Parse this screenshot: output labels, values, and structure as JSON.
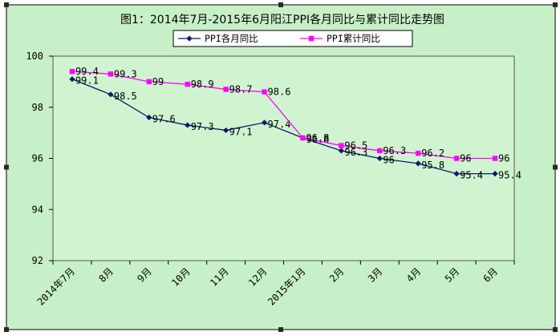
{
  "chart_data": {
    "type": "line",
    "title": "图1：2014年7月-2015年6月阳江PPI各月同比与累计同比走势图",
    "categories": [
      "2014年7月",
      "8月",
      "9月",
      "10月",
      "11月",
      "12月",
      "2015年1月",
      "2月",
      "3月",
      "4月",
      "5月",
      "6月"
    ],
    "ylim": [
      92,
      100
    ],
    "yticks": [
      92,
      94,
      96,
      98,
      100
    ],
    "series": [
      {
        "name": "PPI各月同比",
        "color": "#0a1a6e",
        "marker": "diamond",
        "values": [
          99.1,
          98.5,
          97.6,
          97.3,
          97.1,
          97.4,
          96.8,
          96.3,
          96.0,
          95.8,
          95.4,
          95.4
        ],
        "labels": [
          "99.1",
          "98.5",
          "97.6",
          "97.3",
          "97.1",
          "97.4",
          "96.8",
          "96.3",
          "96",
          "95.8",
          "95.4",
          "95.4"
        ]
      },
      {
        "name": "PPI累计同比",
        "color": "#ff00ff",
        "marker": "square",
        "values": [
          99.4,
          99.3,
          99.0,
          98.9,
          98.7,
          98.6,
          96.8,
          96.5,
          96.3,
          96.2,
          96.0,
          96.0
        ],
        "labels": [
          "99.4",
          "99.3",
          "99",
          "98.9",
          "98.7",
          "98.6",
          "96.8",
          "96.5",
          "96.3",
          "96.2",
          "96",
          "96"
        ]
      }
    ],
    "legend_position": "top"
  },
  "colors": {
    "outer_background": "#c8f0c8",
    "plot_background": "#d0f4d0",
    "axis": "#000000",
    "handle": "#2a2a2a"
  }
}
